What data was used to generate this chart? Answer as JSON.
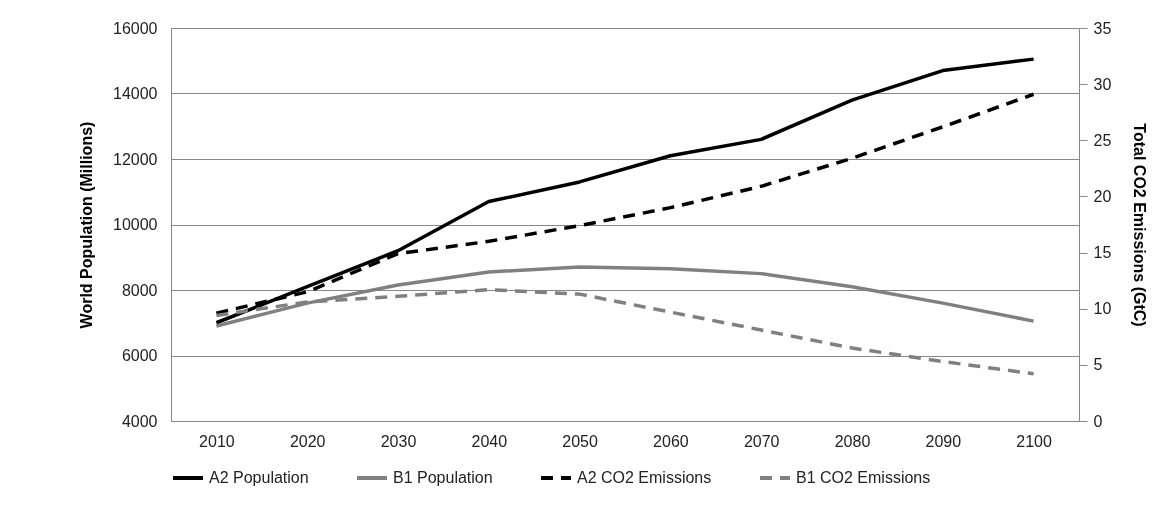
{
  "chart_data": {
    "type": "line",
    "xlabel": null,
    "ylabel": "World Population  (Millions)",
    "y2label": "Total CO2 Emissions  (GtC)",
    "categories": [
      "2010",
      "2020",
      "2030",
      "2040",
      "2050",
      "2060",
      "2070",
      "2080",
      "2090",
      "2100"
    ],
    "series": [
      {
        "name": "A2 Population",
        "color": "#000000",
        "line_style": "solid",
        "values": [
          7000,
          8100,
          9200,
          10700,
          11300,
          12100,
          12600,
          13800,
          14700,
          15050
        ]
      },
      {
        "name": "B1 Population",
        "color": "#808080",
        "line_style": "solid",
        "values": [
          6900,
          7600,
          8150,
          8550,
          8700,
          8650,
          8500,
          8100,
          7600,
          7050
        ]
      },
      {
        "name": "A2 CO2 Emissions",
        "color": "#000000",
        "line_style": "dashed",
        "axis": "y2",
        "values": [
          9.6,
          11.5,
          14.9,
          16.0,
          17.4,
          19.0,
          20.9,
          23.4,
          26.2,
          29.1
        ]
      },
      {
        "name": "B1 CO2 Emissions",
        "color": "#808080",
        "line_style": "dashed",
        "axis": "y2",
        "values": [
          9.4,
          10.6,
          11.1,
          11.7,
          11.3,
          9.7,
          8.1,
          6.5,
          5.3,
          4.2
        ]
      }
    ],
    "ylim": [
      4000,
      16000
    ],
    "yticks": [
      4000,
      6000,
      8000,
      10000,
      12000,
      14000,
      16000
    ],
    "y2lim": [
      0,
      35
    ],
    "y2ticks": [
      0,
      5,
      10,
      15,
      20,
      25,
      30,
      35
    ],
    "grid": "y",
    "legend": "bottom"
  }
}
